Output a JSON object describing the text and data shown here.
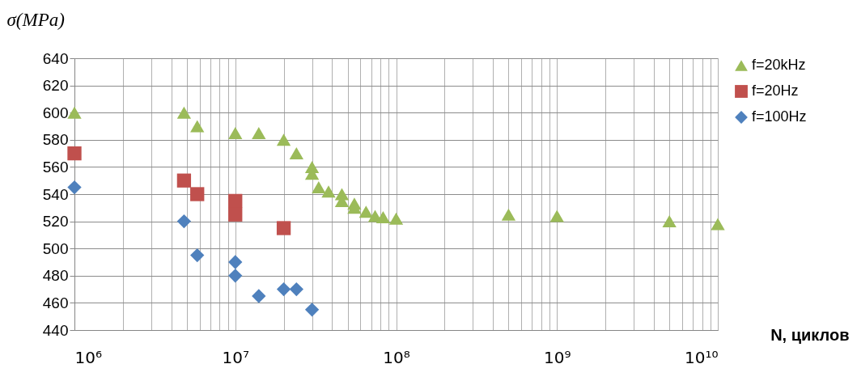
{
  "chart_data": {
    "type": "scatter",
    "ylabel": "σ(MPa)",
    "xlabel": "N, циклов",
    "log": "x",
    "xlim": [
      1000000,
      10000000000
    ],
    "xticks": [
      {
        "value": 1000000,
        "label": "10⁶"
      },
      {
        "value": 2000000,
        "label": null
      },
      {
        "value": 3000000,
        "label": null
      },
      {
        "value": 4000000,
        "label": null
      },
      {
        "value": 5000000,
        "label": null
      },
      {
        "value": 6000000,
        "label": null
      },
      {
        "value": 7000000,
        "label": null
      },
      {
        "value": 8000000,
        "label": null
      },
      {
        "value": 9000000,
        "label": null
      },
      {
        "value": 10000000,
        "label": "10⁷"
      },
      {
        "value": 20000000,
        "label": null
      },
      {
        "value": 30000000,
        "label": null
      },
      {
        "value": 40000000,
        "label": null
      },
      {
        "value": 50000000,
        "label": null
      },
      {
        "value": 60000000,
        "label": null
      },
      {
        "value": 70000000,
        "label": null
      },
      {
        "value": 80000000,
        "label": null
      },
      {
        "value": 90000000,
        "label": null
      },
      {
        "value": 100000000,
        "label": "10⁸"
      },
      {
        "value": 200000000,
        "label": null
      },
      {
        "value": 300000000,
        "label": null
      },
      {
        "value": 400000000,
        "label": null
      },
      {
        "value": 500000000,
        "label": null
      },
      {
        "value": 600000000,
        "label": null
      },
      {
        "value": 700000000,
        "label": null
      },
      {
        "value": 800000000,
        "label": null
      },
      {
        "value": 900000000,
        "label": null
      },
      {
        "value": 1000000000,
        "label": "10⁹"
      },
      {
        "value": 2000000000,
        "label": null
      },
      {
        "value": 3000000000,
        "label": null
      },
      {
        "value": 4000000000,
        "label": null
      },
      {
        "value": 5000000000,
        "label": null
      },
      {
        "value": 6000000000,
        "label": null
      },
      {
        "value": 7000000000,
        "label": null
      },
      {
        "value": 8000000000,
        "label": null
      },
      {
        "value": 9000000000,
        "label": null
      },
      {
        "value": 10000000000,
        "label": "10¹⁰"
      }
    ],
    "ylim": [
      440,
      640
    ],
    "yticks": [
      440,
      460,
      480,
      500,
      520,
      540,
      560,
      580,
      600,
      620,
      640
    ],
    "grid": true,
    "legend": "right",
    "series": [
      {
        "name": "f=20kHz",
        "color": "#9bbb59",
        "marker": "triangle",
        "x": [
          1000000,
          4800000,
          5800000,
          10000000,
          14000000,
          20000000,
          24000000,
          30000000,
          30000000,
          33000000,
          38000000,
          46000000,
          46000000,
          55000000,
          55000000,
          65000000,
          74000000,
          83000000,
          100000000,
          500000000,
          1000000000,
          5000000000,
          10000000000
        ],
        "values": [
          600,
          600,
          590,
          585,
          585,
          580,
          570,
          560,
          555,
          545,
          542,
          540,
          535,
          533,
          530,
          527,
          524,
          523,
          522,
          525,
          524,
          520,
          518
        ]
      },
      {
        "name": "f=20Hz",
        "color": "#c0504d",
        "marker": "square",
        "x": [
          1000000,
          4800000,
          5800000,
          10000000,
          10000000,
          20000000
        ],
        "values": [
          570,
          550,
          540,
          535,
          525,
          515
        ]
      },
      {
        "name": "f=100Hz",
        "color": "#4f81bd",
        "marker": "diamond",
        "x": [
          1000000,
          4800000,
          5800000,
          10000000,
          10000000,
          14000000,
          20000000,
          24000000,
          30000000
        ],
        "values": [
          545,
          520,
          495,
          490,
          480,
          465,
          470,
          470,
          455
        ]
      }
    ]
  }
}
